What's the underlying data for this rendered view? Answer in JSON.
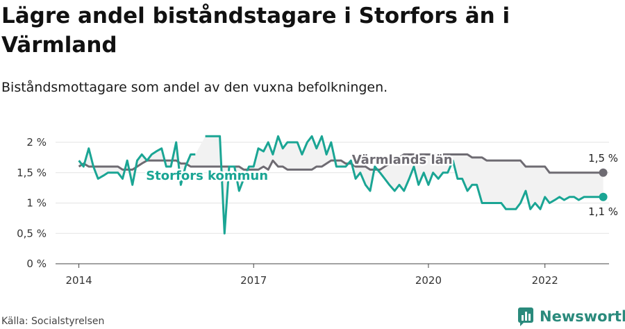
{
  "title": "Lägre andel biståndstagare i Storfors än i Värmland",
  "subtitle": "Biståndsmottagare som andel av den vuxna befolkningen.",
  "source": "Källa: Socialstyrelsen",
  "brand": "Newsworthy",
  "colors": {
    "storfors": "#1aa594",
    "varmland": "#6e6b72",
    "fill": "#f2f2f2",
    "grid": "#e3e3e3",
    "brand": "#2a8a7c"
  },
  "chart_data": {
    "type": "line",
    "ylim": [
      0,
      2
    ],
    "y_ticks": [
      0,
      0.5,
      1,
      1.5,
      2
    ],
    "y_tick_labels": [
      "0 %",
      "0,5 %",
      "1 %",
      "1,5 %",
      "2 %"
    ],
    "x_ticks": [
      2014,
      2017,
      2020,
      2022
    ],
    "x_tick_labels": [
      "2014",
      "2017",
      "2020",
      "2022"
    ],
    "xlim": [
      2013.6,
      2023.1
    ],
    "series": [
      {
        "name": "Värmlands län",
        "key": "varmland",
        "end_label": "1,5 %",
        "points": [
          [
            2014.0,
            1.6
          ],
          [
            2014.08,
            1.65
          ],
          [
            2014.17,
            1.6
          ],
          [
            2014.25,
            1.6
          ],
          [
            2014.33,
            1.6
          ],
          [
            2014.42,
            1.6
          ],
          [
            2014.5,
            1.6
          ],
          [
            2014.58,
            1.6
          ],
          [
            2014.67,
            1.6
          ],
          [
            2014.75,
            1.55
          ],
          [
            2014.83,
            1.55
          ],
          [
            2014.92,
            1.55
          ],
          [
            2015.0,
            1.6
          ],
          [
            2015.08,
            1.65
          ],
          [
            2015.17,
            1.7
          ],
          [
            2015.25,
            1.7
          ],
          [
            2015.33,
            1.7
          ],
          [
            2015.42,
            1.7
          ],
          [
            2015.5,
            1.7
          ],
          [
            2015.58,
            1.7
          ],
          [
            2015.67,
            1.7
          ],
          [
            2015.75,
            1.65
          ],
          [
            2015.83,
            1.65
          ],
          [
            2015.92,
            1.6
          ],
          [
            2016.0,
            1.6
          ],
          [
            2016.08,
            1.6
          ],
          [
            2016.17,
            1.6
          ],
          [
            2016.25,
            1.6
          ],
          [
            2016.33,
            1.6
          ],
          [
            2016.42,
            1.6
          ],
          [
            2016.5,
            1.6
          ],
          [
            2016.58,
            1.6
          ],
          [
            2016.67,
            1.6
          ],
          [
            2016.75,
            1.6
          ],
          [
            2016.83,
            1.55
          ],
          [
            2016.92,
            1.55
          ],
          [
            2017.0,
            1.55
          ],
          [
            2017.08,
            1.55
          ],
          [
            2017.17,
            1.6
          ],
          [
            2017.25,
            1.55
          ],
          [
            2017.33,
            1.7
          ],
          [
            2017.42,
            1.6
          ],
          [
            2017.5,
            1.6
          ],
          [
            2017.58,
            1.55
          ],
          [
            2017.67,
            1.55
          ],
          [
            2017.75,
            1.55
          ],
          [
            2017.83,
            1.55
          ],
          [
            2017.92,
            1.55
          ],
          [
            2018.0,
            1.55
          ],
          [
            2018.08,
            1.6
          ],
          [
            2018.17,
            1.6
          ],
          [
            2018.25,
            1.65
          ],
          [
            2018.33,
            1.7
          ],
          [
            2018.42,
            1.7
          ],
          [
            2018.5,
            1.7
          ],
          [
            2018.58,
            1.65
          ],
          [
            2018.67,
            1.65
          ],
          [
            2018.75,
            1.6
          ],
          [
            2018.83,
            1.6
          ],
          [
            2018.92,
            1.6
          ],
          [
            2019.0,
            1.55
          ],
          [
            2019.08,
            1.55
          ],
          [
            2019.17,
            1.55
          ],
          [
            2019.25,
            1.6
          ],
          [
            2019.33,
            1.65
          ],
          [
            2019.42,
            1.7
          ],
          [
            2019.5,
            1.75
          ],
          [
            2019.58,
            1.8
          ],
          [
            2019.67,
            1.8
          ],
          [
            2019.75,
            1.8
          ],
          [
            2019.83,
            1.8
          ],
          [
            2019.92,
            1.8
          ],
          [
            2020.0,
            1.8
          ],
          [
            2020.08,
            1.8
          ],
          [
            2020.17,
            1.8
          ],
          [
            2020.25,
            1.8
          ],
          [
            2020.33,
            1.8
          ],
          [
            2020.42,
            1.8
          ],
          [
            2020.5,
            1.8
          ],
          [
            2020.58,
            1.8
          ],
          [
            2020.67,
            1.8
          ],
          [
            2020.75,
            1.75
          ],
          [
            2020.83,
            1.75
          ],
          [
            2020.92,
            1.75
          ],
          [
            2021.0,
            1.7
          ],
          [
            2021.08,
            1.7
          ],
          [
            2021.17,
            1.7
          ],
          [
            2021.25,
            1.7
          ],
          [
            2021.33,
            1.7
          ],
          [
            2021.42,
            1.7
          ],
          [
            2021.5,
            1.7
          ],
          [
            2021.58,
            1.7
          ],
          [
            2021.67,
            1.6
          ],
          [
            2021.75,
            1.6
          ],
          [
            2021.83,
            1.6
          ],
          [
            2021.92,
            1.6
          ],
          [
            2022.0,
            1.6
          ],
          [
            2022.08,
            1.5
          ],
          [
            2022.17,
            1.5
          ],
          [
            2022.25,
            1.5
          ],
          [
            2022.33,
            1.5
          ],
          [
            2022.42,
            1.5
          ],
          [
            2022.5,
            1.5
          ],
          [
            2022.58,
            1.5
          ],
          [
            2022.67,
            1.5
          ],
          [
            2022.75,
            1.5
          ],
          [
            2022.83,
            1.5
          ],
          [
            2022.92,
            1.5
          ],
          [
            2023.0,
            1.5
          ]
        ]
      },
      {
        "name": "Storfors kommun",
        "key": "storfors",
        "end_label": "1,1 %",
        "points": [
          [
            2014.0,
            1.7
          ],
          [
            2014.08,
            1.6
          ],
          [
            2014.17,
            1.9
          ],
          [
            2014.25,
            1.6
          ],
          [
            2014.33,
            1.4
          ],
          [
            2014.42,
            1.45
          ],
          [
            2014.5,
            1.5
          ],
          [
            2014.58,
            1.5
          ],
          [
            2014.67,
            1.5
          ],
          [
            2014.75,
            1.4
          ],
          [
            2014.83,
            1.7
          ],
          [
            2014.92,
            1.3
          ],
          [
            2015.0,
            1.7
          ],
          [
            2015.08,
            1.8
          ],
          [
            2015.17,
            1.7
          ],
          [
            2015.25,
            1.8
          ],
          [
            2015.33,
            1.85
          ],
          [
            2015.42,
            1.9
          ],
          [
            2015.5,
            1.6
          ],
          [
            2015.58,
            1.6
          ],
          [
            2015.67,
            2.0
          ],
          [
            2015.75,
            1.3
          ],
          [
            2015.83,
            1.6
          ],
          [
            2015.92,
            1.8
          ],
          [
            2016.0,
            1.8
          ],
          [
            2016.08,
            null
          ],
          [
            2016.17,
            2.1
          ],
          [
            2016.25,
            2.1
          ],
          [
            2016.33,
            2.1
          ],
          [
            2016.42,
            2.1
          ],
          [
            2016.5,
            0.5
          ],
          [
            2016.58,
            1.6
          ],
          [
            2016.67,
            1.6
          ],
          [
            2016.75,
            1.2
          ],
          [
            2016.83,
            1.4
          ],
          [
            2016.92,
            1.6
          ],
          [
            2017.0,
            1.6
          ],
          [
            2017.08,
            1.9
          ],
          [
            2017.17,
            1.85
          ],
          [
            2017.25,
            2.0
          ],
          [
            2017.33,
            1.8
          ],
          [
            2017.42,
            2.1
          ],
          [
            2017.5,
            1.9
          ],
          [
            2017.58,
            2.0
          ],
          [
            2017.67,
            2.0
          ],
          [
            2017.75,
            2.0
          ],
          [
            2017.83,
            1.8
          ],
          [
            2017.92,
            2.0
          ],
          [
            2018.0,
            2.1
          ],
          [
            2018.08,
            1.9
          ],
          [
            2018.17,
            2.1
          ],
          [
            2018.25,
            1.8
          ],
          [
            2018.33,
            2.0
          ],
          [
            2018.42,
            1.6
          ],
          [
            2018.5,
            1.6
          ],
          [
            2018.58,
            1.6
          ],
          [
            2018.67,
            1.7
          ],
          [
            2018.75,
            1.4
          ],
          [
            2018.83,
            1.5
          ],
          [
            2018.92,
            1.3
          ],
          [
            2019.0,
            1.2
          ],
          [
            2019.08,
            1.6
          ],
          [
            2019.17,
            1.5
          ],
          [
            2019.25,
            1.4
          ],
          [
            2019.33,
            1.3
          ],
          [
            2019.42,
            1.2
          ],
          [
            2019.5,
            1.3
          ],
          [
            2019.58,
            1.2
          ],
          [
            2019.67,
            1.4
          ],
          [
            2019.75,
            1.6
          ],
          [
            2019.83,
            1.3
          ],
          [
            2019.92,
            1.5
          ],
          [
            2020.0,
            1.3
          ],
          [
            2020.08,
            1.5
          ],
          [
            2020.17,
            1.4
          ],
          [
            2020.25,
            1.5
          ],
          [
            2020.33,
            1.5
          ],
          [
            2020.42,
            1.7
          ],
          [
            2020.5,
            1.4
          ],
          [
            2020.58,
            1.4
          ],
          [
            2020.67,
            1.2
          ],
          [
            2020.75,
            1.3
          ],
          [
            2020.83,
            1.3
          ],
          [
            2020.92,
            1.0
          ],
          [
            2021.0,
            1.0
          ],
          [
            2021.08,
            1.0
          ],
          [
            2021.17,
            1.0
          ],
          [
            2021.25,
            1.0
          ],
          [
            2021.33,
            0.9
          ],
          [
            2021.42,
            0.9
          ],
          [
            2021.5,
            0.9
          ],
          [
            2021.58,
            1.0
          ],
          [
            2021.67,
            1.2
          ],
          [
            2021.75,
            0.9
          ],
          [
            2021.83,
            1.0
          ],
          [
            2021.92,
            0.9
          ],
          [
            2022.0,
            1.1
          ],
          [
            2022.08,
            1.0
          ],
          [
            2022.17,
            1.05
          ],
          [
            2022.25,
            1.1
          ],
          [
            2022.33,
            1.05
          ],
          [
            2022.42,
            1.1
          ],
          [
            2022.5,
            1.1
          ],
          [
            2022.58,
            1.05
          ],
          [
            2022.67,
            1.1
          ],
          [
            2022.75,
            1.1
          ],
          [
            2022.83,
            1.1
          ],
          [
            2022.92,
            1.1
          ],
          [
            2023.0,
            1.1
          ]
        ]
      }
    ],
    "annotations": [
      {
        "text": "Värmlands län",
        "series": "varmland"
      },
      {
        "text": "Storfors kommun",
        "series": "storfors"
      }
    ],
    "grid": true
  }
}
